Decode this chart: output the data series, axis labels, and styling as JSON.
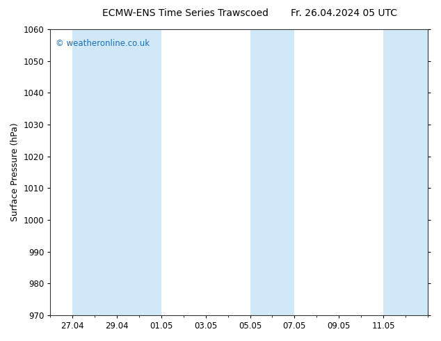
{
  "title_left": "ECMW-ENS Time Series Trawscoed",
  "title_right": "Fr. 26.04.2024 05 UTC",
  "ylabel": "Surface Pressure (hPa)",
  "ylim": [
    970,
    1060
  ],
  "yticks": [
    970,
    980,
    990,
    1000,
    1010,
    1020,
    1030,
    1040,
    1050,
    1060
  ],
  "background_color": "#ffffff",
  "plot_bg_color": "#ffffff",
  "watermark": "© weatheronline.co.uk",
  "watermark_color": "#1a6eb5",
  "shaded_color": "#d0e8f8",
  "band_ranges": [
    [
      1,
      3
    ],
    [
      3,
      5
    ],
    [
      9,
      11
    ],
    [
      15,
      17
    ]
  ],
  "x_tick_labels": [
    "27.04",
    "29.04",
    "01.05",
    "03.05",
    "05.05",
    "07.05",
    "09.05",
    "11.05"
  ],
  "x_tick_positions": [
    1,
    3,
    5,
    7,
    9,
    11,
    13,
    15
  ],
  "x_lim": [
    0,
    17
  ],
  "title_fontsize": 10,
  "label_fontsize": 9,
  "tick_fontsize": 8.5,
  "watermark_fontsize": 8.5
}
